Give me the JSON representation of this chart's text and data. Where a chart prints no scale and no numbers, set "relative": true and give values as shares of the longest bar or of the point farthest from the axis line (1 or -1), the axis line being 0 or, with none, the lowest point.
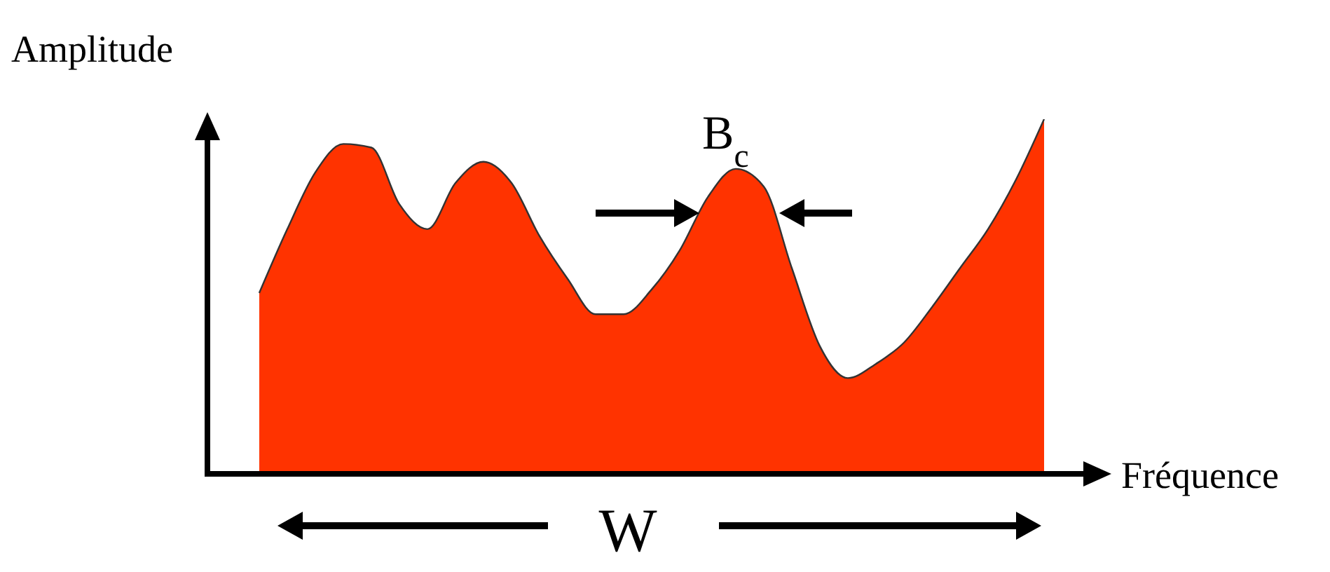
{
  "chart_data": {
    "type": "area",
    "relative": true,
    "xlabel": "Fréquence",
    "ylabel": "Amplitude",
    "categories": [
      null,
      null,
      null,
      null,
      null,
      null,
      null,
      null,
      null,
      null,
      null,
      null,
      null,
      null,
      null,
      null,
      null,
      null,
      null,
      null,
      null,
      null,
      null,
      null,
      null,
      null,
      null,
      null,
      null
    ],
    "series": [
      {
        "color": "#ff3300",
        "values": [
          0.51,
          0.69,
          0.85,
          0.93,
          0.92,
          0.76,
          0.69,
          0.82,
          0.88,
          0.82,
          0.67,
          0.55,
          0.45,
          0.45,
          0.52,
          0.63,
          0.78,
          0.86,
          0.81,
          0.58,
          0.36,
          0.27,
          0.31,
          0.37,
          0.47,
          0.58,
          0.69,
          0.83,
          1.0
        ]
      }
    ],
    "annotations": [
      "B$_{c}$",
      "W"
    ],
    "legend": false,
    "grid": false
  }
}
